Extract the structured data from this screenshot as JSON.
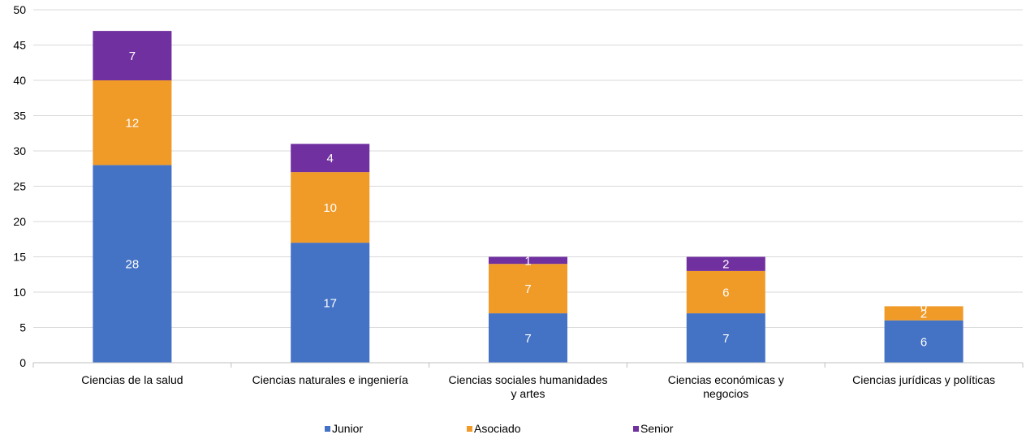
{
  "chart_data": {
    "type": "bar",
    "stacked": true,
    "title": "",
    "xlabel": "",
    "ylabel": "",
    "ylim": [
      0,
      50
    ],
    "yticks": [
      0,
      5,
      10,
      15,
      20,
      25,
      30,
      35,
      40,
      45,
      50
    ],
    "grid": true,
    "legend_position": "bottom",
    "categories": [
      [
        "Ciencias de la salud"
      ],
      [
        "Ciencias naturales e ingeniería"
      ],
      [
        "Ciencias sociales humanidades",
        "y artes"
      ],
      [
        "Ciencias económicas y",
        "negocios"
      ],
      [
        "Ciencias jurídicas y políticas"
      ]
    ],
    "series": [
      {
        "name": "Junior",
        "color": "#4472C4",
        "values": [
          28,
          17,
          7,
          7,
          6
        ]
      },
      {
        "name": "Asociado",
        "color": "#F09A28",
        "values": [
          12,
          10,
          7,
          6,
          2
        ]
      },
      {
        "name": "Senior",
        "color": "#7030A0",
        "values": [
          7,
          4,
          1,
          2,
          0
        ]
      }
    ]
  }
}
